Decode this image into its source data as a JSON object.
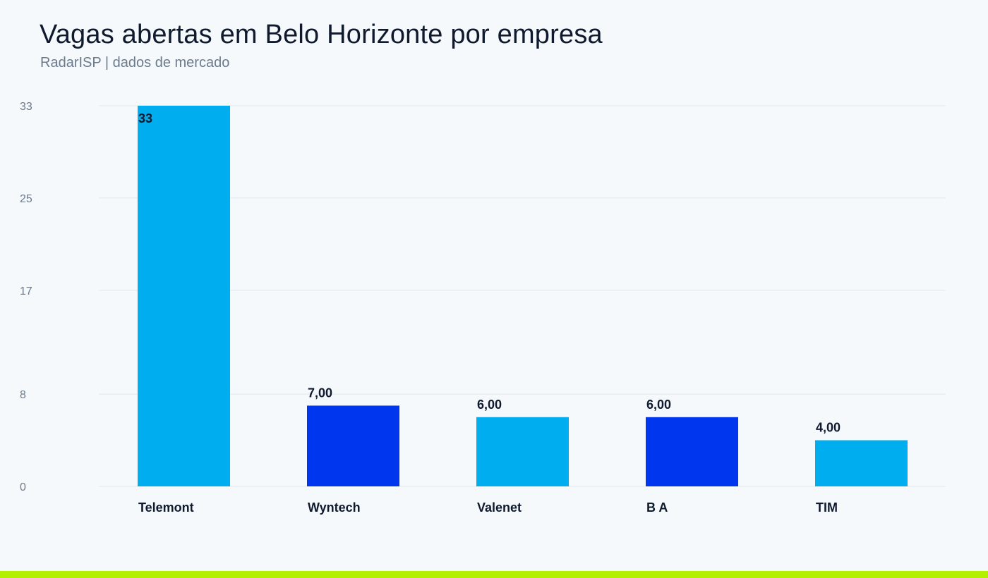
{
  "header": {
    "title": "Vagas abertas em Belo Horizonte por empresa",
    "subtitle": "RadarISP | dados de mercado"
  },
  "colors": {
    "background": "#f5f9fc",
    "bar_light": "#00aeef",
    "bar_dark": "#0037ee",
    "gridline": "#e1e7ee",
    "footer_accent": "#b2f000"
  },
  "chart_data": {
    "type": "bar",
    "title": "Vagas abertas em Belo Horizonte por empresa",
    "subtitle": "RadarISP | dados de mercado",
    "xlabel": "",
    "ylabel": "",
    "categories": [
      "Telemont",
      "Wyntech",
      "Valenet",
      "B A",
      "TIM"
    ],
    "values": [
      33,
      7,
      6,
      6,
      4
    ],
    "data_labels": [
      "33",
      "7,00",
      "6,00",
      "6,00",
      "4,00"
    ],
    "bar_colors": [
      "#00aeef",
      "#0037ee",
      "#00aeef",
      "#0037ee",
      "#00aeef"
    ],
    "yticks": [
      0,
      8,
      17,
      25,
      33
    ],
    "ylim": [
      0,
      33
    ],
    "grid": true,
    "legend": "none"
  }
}
